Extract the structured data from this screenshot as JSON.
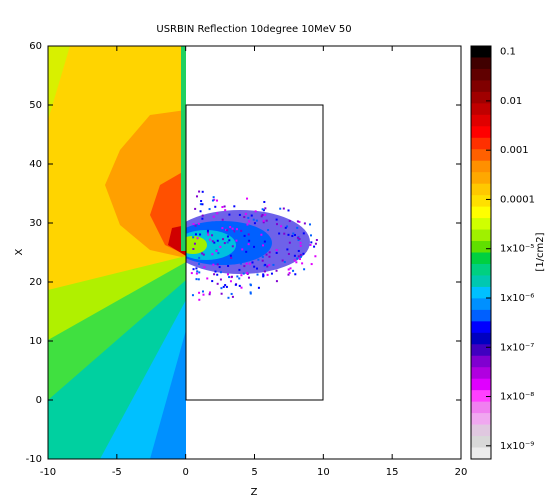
{
  "chart_data": {
    "type": "heatmap",
    "title": "USRBIN Reflection 10degree 10MeV 50",
    "xlabel": "Z",
    "ylabel": "X",
    "colorbar_label": "[1/cm2]",
    "xlim": [
      -10,
      20
    ],
    "xticks": [
      -10,
      -5,
      0,
      5,
      10,
      15,
      20
    ],
    "ylim": [
      -10,
      60
    ],
    "yticks": [
      -10,
      0,
      10,
      20,
      30,
      40,
      50,
      60
    ],
    "clim": [
      5.4e-10,
      0.13
    ],
    "log_scale": true,
    "cticks": [
      {
        "value": 0.1,
        "label": "0.1"
      },
      {
        "value": 0.01,
        "label": "0.01"
      },
      {
        "value": 0.001,
        "label": "0.001"
      },
      {
        "value": 0.0001,
        "label": "0.0001"
      },
      {
        "value": 1e-05,
        "label": "1x10⁻⁵"
      },
      {
        "value": 1e-06,
        "label": "1x10⁻⁶"
      },
      {
        "value": 1e-07,
        "label": "1x10⁻⁷"
      },
      {
        "value": 1e-08,
        "label": "1x10⁻⁸"
      },
      {
        "value": 1e-09,
        "label": "1x10⁻⁹"
      }
    ],
    "colors": [
      "#000000",
      "#400000",
      "#600000",
      "#800000",
      "#a00000",
      "#c00000",
      "#e00000",
      "#ff0000",
      "#ff3000",
      "#ff6000",
      "#ff9000",
      "#ffa800",
      "#ffc800",
      "#ffe000",
      "#ffff00",
      "#d0ff00",
      "#a0f000",
      "#60e000",
      "#00d040",
      "#00d080",
      "#00c8b0",
      "#00c0ff",
      "#0090ff",
      "#0060ff",
      "#0000ff",
      "#0000c0",
      "#4000c0",
      "#8000d0",
      "#b000e0",
      "#e000ff",
      "#ff40ff",
      "#f080f0",
      "#f0a8f0",
      "#e0c8e0",
      "#d8d8d8",
      "#ececec"
    ]
  }
}
